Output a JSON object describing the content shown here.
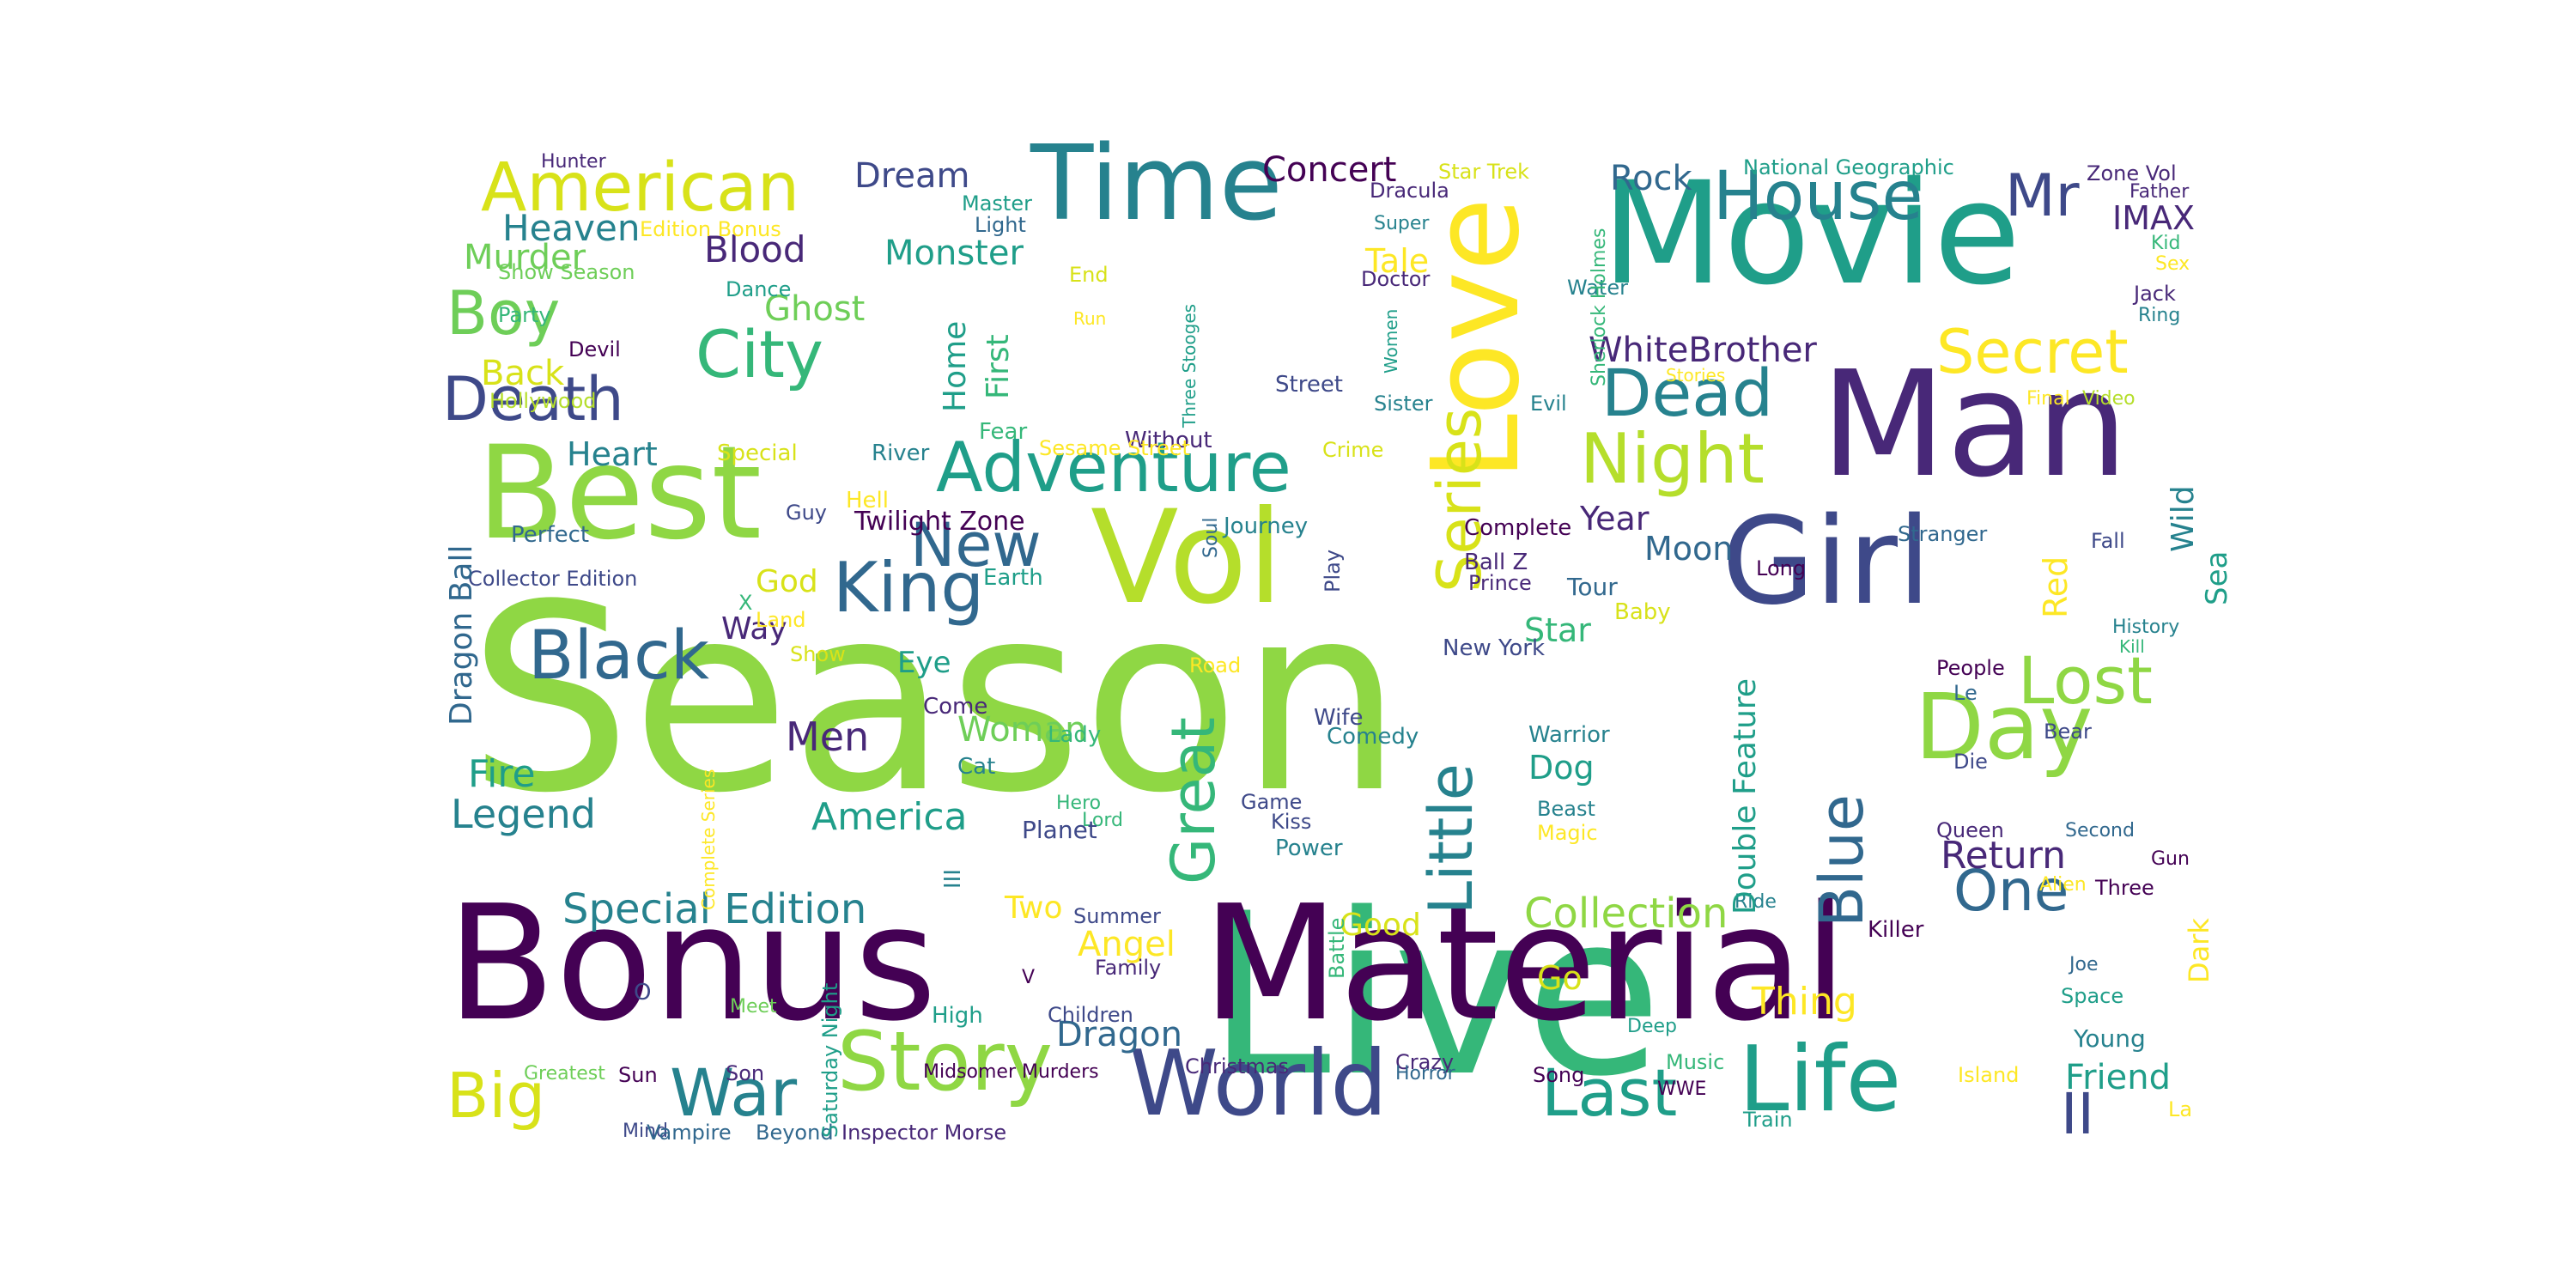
{
  "palette": {
    "c0": "#440154",
    "c1": "#482878",
    "c2": "#3e4989",
    "c3": "#31688e",
    "c4": "#26828e",
    "c5": "#1f9e89",
    "c6": "#35b779",
    "c7": "#6ece58",
    "c8": "#b5de2b",
    "c9": "#fde725",
    "c10": "#8fd744",
    "c11": "#d8e219"
  },
  "words": [
    {
      "text": "Season",
      "size": 300,
      "color": "c10"
    },
    {
      "text": "Live",
      "size": 260,
      "color": "c6"
    },
    {
      "text": "Material",
      "size": 185,
      "color": "c0"
    },
    {
      "text": "Bonus",
      "size": 185,
      "color": "c0"
    },
    {
      "text": "Man",
      "size": 170,
      "color": "c1"
    },
    {
      "text": "Movie",
      "size": 165,
      "color": "c5"
    },
    {
      "text": "Best",
      "size": 150,
      "color": "c10"
    },
    {
      "text": "Vol",
      "size": 150,
      "color": "c8"
    },
    {
      "text": "Girl",
      "size": 140,
      "color": "c2"
    },
    {
      "text": "Love",
      "size": 140,
      "color": "c9"
    },
    {
      "text": "Time",
      "size": 120,
      "color": "c4"
    },
    {
      "text": "Day",
      "size": 105,
      "color": "c10"
    },
    {
      "text": "World",
      "size": 105,
      "color": "c2"
    },
    {
      "text": "Life",
      "size": 105,
      "color": "c5"
    },
    {
      "text": "Story",
      "size": 95,
      "color": "c10"
    },
    {
      "text": "Adventure",
      "size": 80,
      "color": "c5"
    },
    {
      "text": "King",
      "size": 80,
      "color": "c3"
    },
    {
      "text": "Night",
      "size": 80,
      "color": "c8"
    },
    {
      "text": "American",
      "size": 78,
      "color": "c11"
    },
    {
      "text": "House",
      "size": 78,
      "color": "c4"
    },
    {
      "text": "Black",
      "size": 78,
      "color": "c3"
    },
    {
      "text": "Dead",
      "size": 76,
      "color": "c4"
    },
    {
      "text": "City",
      "size": 76,
      "color": "c6"
    },
    {
      "text": "War",
      "size": 76,
      "color": "c4"
    },
    {
      "text": "Last",
      "size": 76,
      "color": "c5"
    },
    {
      "text": "Lost",
      "size": 76,
      "color": "c10"
    },
    {
      "text": "Big",
      "size": 72,
      "color": "c11"
    },
    {
      "text": "Death",
      "size": 70,
      "color": "c2"
    },
    {
      "text": "Great",
      "size": 70,
      "color": "c6"
    },
    {
      "text": "Secret",
      "size": 70,
      "color": "c9"
    },
    {
      "text": "Boy",
      "size": 70,
      "color": "c7"
    },
    {
      "text": "New",
      "size": 70,
      "color": "c3"
    },
    {
      "text": "Series",
      "size": 70,
      "color": "c11"
    },
    {
      "text": "Little",
      "size": 70,
      "color": "c4"
    },
    {
      "text": "Blue",
      "size": 70,
      "color": "c3"
    },
    {
      "text": "Mr",
      "size": 68,
      "color": "c2"
    },
    {
      "text": "One",
      "size": 66,
      "color": "c3"
    },
    {
      "text": "II",
      "size": 66,
      "color": "c2"
    },
    {
      "text": "Special Edition",
      "size": 48,
      "color": "c4"
    },
    {
      "text": "Collection",
      "size": 48,
      "color": "c10"
    },
    {
      "text": "Legend",
      "size": 46,
      "color": "c4"
    },
    {
      "text": "Heaven",
      "size": 42,
      "color": "c4"
    },
    {
      "text": "Men",
      "size": 46,
      "color": "c1"
    },
    {
      "text": "America",
      "size": 44,
      "color": "c5"
    },
    {
      "text": "Thing",
      "size": 44,
      "color": "c9"
    },
    {
      "text": "Return",
      "size": 44,
      "color": "c1"
    },
    {
      "text": "Fire",
      "size": 44,
      "color": "c5"
    },
    {
      "text": "WhiteBrother",
      "size": 40,
      "color": "c1"
    },
    {
      "text": "Rock",
      "size": 40,
      "color": "c3"
    },
    {
      "text": "Blood",
      "size": 42,
      "color": "c1"
    },
    {
      "text": "Monster",
      "size": 40,
      "color": "c5"
    },
    {
      "text": "Murder",
      "size": 40,
      "color": "c7"
    },
    {
      "text": "Ghost",
      "size": 40,
      "color": "c7"
    },
    {
      "text": "Dream",
      "size": 40,
      "color": "c2"
    },
    {
      "text": "Concert",
      "size": 40,
      "color": "c0"
    },
    {
      "text": "Angel",
      "size": 40,
      "color": "c9"
    },
    {
      "text": "Woman",
      "size": 40,
      "color": "c7"
    },
    {
      "text": "Dragon",
      "size": 40,
      "color": "c3"
    },
    {
      "text": "Friend",
      "size": 40,
      "color": "c5"
    },
    {
      "text": "Back",
      "size": 40,
      "color": "c11"
    },
    {
      "text": "Heart",
      "size": 38,
      "color": "c4"
    },
    {
      "text": "Dog",
      "size": 38,
      "color": "c5"
    },
    {
      "text": "Star",
      "size": 38,
      "color": "c6"
    },
    {
      "text": "Tale",
      "size": 38,
      "color": "c9"
    },
    {
      "text": "Moon",
      "size": 38,
      "color": "c3"
    },
    {
      "text": "Year",
      "size": 38,
      "color": "c1"
    },
    {
      "text": "IMAX",
      "size": 38,
      "color": "c1"
    },
    {
      "text": "Good",
      "size": 36,
      "color": "c11"
    },
    {
      "text": "God",
      "size": 36,
      "color": "c11"
    },
    {
      "text": "Way",
      "size": 36,
      "color": "c1"
    },
    {
      "text": "Eye",
      "size": 34,
      "color": "c5"
    },
    {
      "text": "Two",
      "size": 36,
      "color": "c9"
    },
    {
      "text": "Go",
      "size": 38,
      "color": "c11"
    },
    {
      "text": "Young",
      "size": 28,
      "color": "c4"
    },
    {
      "text": "Street",
      "size": 26,
      "color": "c2"
    },
    {
      "text": "Hunter",
      "size": 22,
      "color": "c1"
    },
    {
      "text": "Edition Bonus",
      "size": 24,
      "color": "c9"
    },
    {
      "text": "Show Season",
      "size": 24,
      "color": "c7"
    },
    {
      "text": "Party",
      "size": 24,
      "color": "c6"
    },
    {
      "text": "Devil",
      "size": 24,
      "color": "c0"
    },
    {
      "text": "Dance",
      "size": 24,
      "color": "c5"
    },
    {
      "text": "Master",
      "size": 24,
      "color": "c5"
    },
    {
      "text": "Light",
      "size": 24,
      "color": "c3"
    },
    {
      "text": "End",
      "size": 24,
      "color": "c11"
    },
    {
      "text": "Hollywood",
      "size": 24,
      "color": "c8"
    },
    {
      "text": "Special",
      "size": 26,
      "color": "c11"
    },
    {
      "text": "River",
      "size": 26,
      "color": "c4"
    },
    {
      "text": "Fear",
      "size": 26,
      "color": "c6"
    },
    {
      "text": "Without",
      "size": 26,
      "color": "c1"
    },
    {
      "text": "Crime",
      "size": 24,
      "color": "c11"
    },
    {
      "text": "Sesame Street",
      "size": 24,
      "color": "c9"
    },
    {
      "text": "Perfect",
      "size": 26,
      "color": "c3"
    },
    {
      "text": "Guy",
      "size": 24,
      "color": "c2"
    },
    {
      "text": "Hell",
      "size": 26,
      "color": "c9"
    },
    {
      "text": "Twilight Zone",
      "size": 30,
      "color": "c0"
    },
    {
      "text": "Collector Edition",
      "size": 24,
      "color": "c2"
    },
    {
      "text": "Earth",
      "size": 26,
      "color": "c5"
    },
    {
      "text": "X",
      "size": 24,
      "color": "c6"
    },
    {
      "text": "Land",
      "size": 24,
      "color": "c9"
    },
    {
      "text": "Show",
      "size": 24,
      "color": "c11"
    },
    {
      "text": "Road",
      "size": 24,
      "color": "c9"
    },
    {
      "text": "Journey",
      "size": 26,
      "color": "c4"
    },
    {
      "text": "Complete",
      "size": 26,
      "color": "c0"
    },
    {
      "text": "Ball Z",
      "size": 26,
      "color": "c1"
    },
    {
      "text": "Prince",
      "size": 24,
      "color": "c1"
    },
    {
      "text": "Tour",
      "size": 28,
      "color": "c3"
    },
    {
      "text": "Baby",
      "size": 26,
      "color": "c11"
    },
    {
      "text": "New York",
      "size": 26,
      "color": "c2"
    },
    {
      "text": "Come",
      "size": 26,
      "color": "c1"
    },
    {
      "text": "Lady",
      "size": 26,
      "color": "c6"
    },
    {
      "text": "Wife",
      "size": 26,
      "color": "c2"
    },
    {
      "text": "Comedy",
      "size": 26,
      "color": "c4"
    },
    {
      "text": "Warrior",
      "size": 26,
      "color": "c4"
    },
    {
      "text": "Cat",
      "size": 26,
      "color": "c4"
    },
    {
      "text": "Hero",
      "size": 22,
      "color": "c6"
    },
    {
      "text": "Lord",
      "size": 22,
      "color": "c6"
    },
    {
      "text": "Game",
      "size": 24,
      "color": "c2"
    },
    {
      "text": "Kiss",
      "size": 24,
      "color": "c2"
    },
    {
      "text": "Planet",
      "size": 28,
      "color": "c2"
    },
    {
      "text": "Power",
      "size": 26,
      "color": "c4"
    },
    {
      "text": "Beast",
      "size": 24,
      "color": "c4"
    },
    {
      "text": "Magic",
      "size": 24,
      "color": "c9"
    },
    {
      "text": "Summer",
      "size": 24,
      "color": "c2"
    },
    {
      "text": "Family",
      "size": 24,
      "color": "c1"
    },
    {
      "text": "Children",
      "size": 24,
      "color": "c2"
    },
    {
      "text": "Christmas",
      "size": 24,
      "color": "c1"
    },
    {
      "text": "Crazy",
      "size": 24,
      "color": "c1"
    },
    {
      "text": "Horror",
      "size": 22,
      "color": "c3"
    },
    {
      "text": "Song",
      "size": 24,
      "color": "c0"
    },
    {
      "text": "Music",
      "size": 24,
      "color": "c6"
    },
    {
      "text": "Deep",
      "size": 22,
      "color": "c5"
    },
    {
      "text": "WWE",
      "size": 22,
      "color": "c0"
    },
    {
      "text": "Train",
      "size": 24,
      "color": "c5"
    },
    {
      "text": "Island",
      "size": 24,
      "color": "c9"
    },
    {
      "text": "La",
      "size": 24,
      "color": "c9"
    },
    {
      "text": "Meet",
      "size": 22,
      "color": "c7"
    },
    {
      "text": "High",
      "size": 26,
      "color": "c5"
    },
    {
      "text": "Son",
      "size": 24,
      "color": "c1"
    },
    {
      "text": "Midsomer Murders",
      "size": 22,
      "color": "c0"
    },
    {
      "text": "Greatest",
      "size": 22,
      "color": "c7"
    },
    {
      "text": "Sun",
      "size": 24,
      "color": "c0"
    },
    {
      "text": "Mind",
      "size": 22,
      "color": "c2"
    },
    {
      "text": "Vampire",
      "size": 24,
      "color": "c3"
    },
    {
      "text": "Beyond",
      "size": 24,
      "color": "c3"
    },
    {
      "text": "Inspector Morse",
      "size": 24,
      "color": "c1"
    },
    {
      "text": "O",
      "size": 26,
      "color": "c2"
    },
    {
      "text": "V",
      "size": 22,
      "color": "c0"
    },
    {
      "text": "National Geographic",
      "size": 24,
      "color": "c5"
    },
    {
      "text": "Star Trek",
      "size": 24,
      "color": "c11"
    },
    {
      "text": "Dracula",
      "size": 24,
      "color": "c1"
    },
    {
      "text": "Super",
      "size": 22,
      "color": "c4"
    },
    {
      "text": "Doctor",
      "size": 24,
      "color": "c1"
    },
    {
      "text": "Water",
      "size": 24,
      "color": "c4"
    },
    {
      "text": "Sister",
      "size": 24,
      "color": "c4"
    },
    {
      "text": "Evil",
      "size": 24,
      "color": "c4"
    },
    {
      "text": "Zone Vol",
      "size": 24,
      "color": "c1"
    },
    {
      "text": "Father",
      "size": 22,
      "color": "c1"
    },
    {
      "text": "Kid",
      "size": 22,
      "color": "c6"
    },
    {
      "text": "Sex",
      "size": 22,
      "color": "c9"
    },
    {
      "text": "Jack",
      "size": 24,
      "color": "c1"
    },
    {
      "text": "Ring",
      "size": 22,
      "color": "c4"
    },
    {
      "text": "Stories",
      "size": 20,
      "color": "c9"
    },
    {
      "text": "Final",
      "size": 22,
      "color": "c9"
    },
    {
      "text": "Video",
      "size": 22,
      "color": "c8"
    },
    {
      "text": "Stranger",
      "size": 24,
      "color": "c3"
    },
    {
      "text": "Fall",
      "size": 24,
      "color": "c2"
    },
    {
      "text": "Long",
      "size": 24,
      "color": "c0"
    },
    {
      "text": "History",
      "size": 22,
      "color": "c4"
    },
    {
      "text": "Kill",
      "size": 20,
      "color": "c6"
    },
    {
      "text": "People",
      "size": 24,
      "color": "c0"
    },
    {
      "text": "Le",
      "size": 24,
      "color": "c3"
    },
    {
      "text": "Bear",
      "size": 24,
      "color": "c2"
    },
    {
      "text": "Die",
      "size": 24,
      "color": "c2"
    },
    {
      "text": "Queen",
      "size": 24,
      "color": "c1"
    },
    {
      "text": "Second",
      "size": 22,
      "color": "c3"
    },
    {
      "text": "Gun",
      "size": 22,
      "color": "c0"
    },
    {
      "text": "Three",
      "size": 24,
      "color": "c0"
    },
    {
      "text": "Alien",
      "size": 22,
      "color": "c9"
    },
    {
      "text": "Ride",
      "size": 22,
      "color": "c4"
    },
    {
      "text": "Killer",
      "size": 26,
      "color": "c0"
    },
    {
      "text": "Joe",
      "size": 22,
      "color": "c3"
    },
    {
      "text": "Space",
      "size": 24,
      "color": "c5"
    },
    {
      "text": "Run",
      "size": 20,
      "color": "c9"
    },
    {
      "text": "Home",
      "size": 36,
      "color": "c5"
    },
    {
      "text": "First",
      "size": 36,
      "color": "c6"
    },
    {
      "text": "Three Stooges",
      "size": 20,
      "color": "c5"
    },
    {
      "text": "Women",
      "size": 20,
      "color": "c5"
    },
    {
      "text": "Sherlock Holmes",
      "size": 22,
      "color": "c6"
    },
    {
      "text": "Dragon Ball",
      "size": 36,
      "color": "c3"
    },
    {
      "text": "Soul",
      "size": 22,
      "color": "c3"
    },
    {
      "text": "Play",
      "size": 24,
      "color": "c2"
    },
    {
      "text": "Complete Series",
      "size": 20,
      "color": "c9"
    },
    {
      "text": "III",
      "size": 26,
      "color": "c4"
    },
    {
      "text": "Saturday Night",
      "size": 24,
      "color": "c5"
    },
    {
      "text": "Battle",
      "size": 24,
      "color": "c6"
    },
    {
      "text": "Double Feature",
      "size": 36,
      "color": "c5"
    },
    {
      "text": "Red",
      "size": 38,
      "color": "c9"
    },
    {
      "text": "Wild",
      "size": 36,
      "color": "c4"
    },
    {
      "text": "Sea",
      "size": 34,
      "color": "c5"
    },
    {
      "text": "Dark",
      "size": 32,
      "color": "c9"
    }
  ]
}
